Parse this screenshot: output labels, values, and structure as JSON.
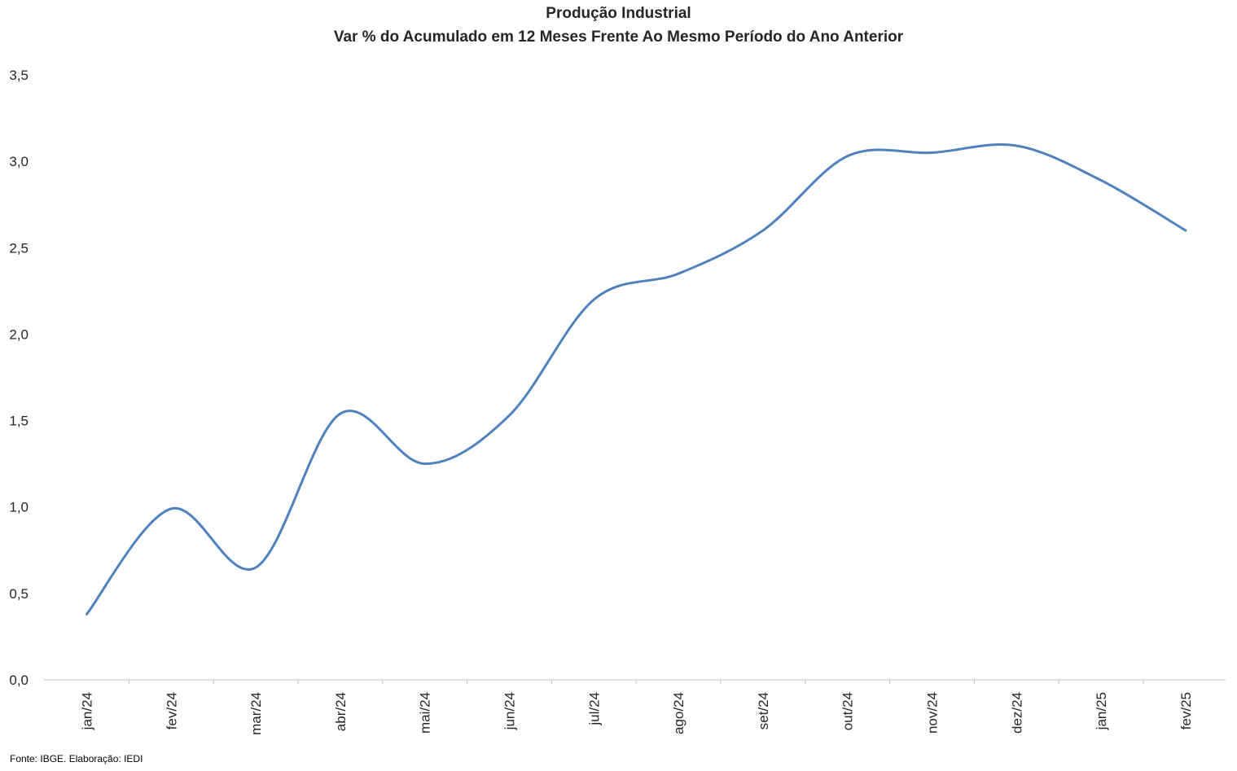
{
  "chart_data": {
    "type": "line",
    "title": "Produção Industrial",
    "subtitle": "Var % do Acumulado em 12 Meses Frente Ao Mesmo Período do Ano Anterior",
    "xlabel": "",
    "ylabel": "",
    "categories": [
      "jan/24",
      "fev/24",
      "mar/24",
      "abr/24",
      "mai/24",
      "jun/24",
      "jul/24",
      "ago/24",
      "set/24",
      "out/24",
      "nov/24",
      "dez/24",
      "jan/25",
      "fev/25"
    ],
    "series": [
      {
        "values": [
          0.38,
          0.99,
          0.65,
          1.54,
          1.25,
          1.53,
          2.2,
          2.35,
          2.6,
          3.03,
          3.05,
          3.09,
          2.89,
          2.6
        ]
      }
    ],
    "ylim": [
      0,
      3.5
    ],
    "yticks": [
      "0,0",
      "0,5",
      "1,0",
      "1,5",
      "2,0",
      "2,5",
      "3,0",
      "3,5"
    ],
    "grid": false,
    "smooth": true,
    "line_color": "#4F81BD"
  },
  "source": "Fonte: IBGE. Elaboração: IEDI"
}
